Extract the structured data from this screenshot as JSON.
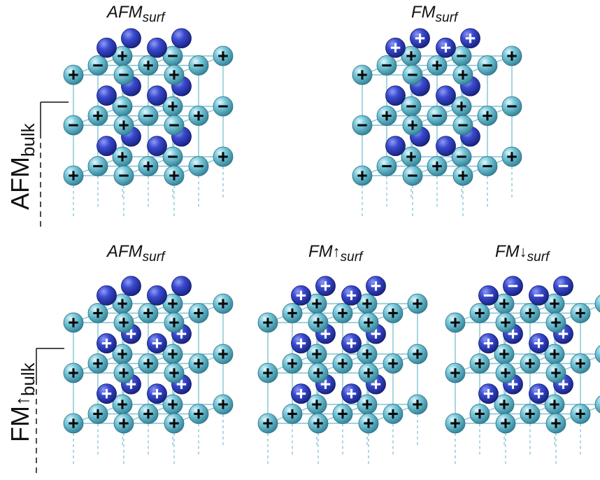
{
  "row_labels": [
    {
      "main": "AFM",
      "sub": "bulk",
      "arrow": ""
    },
    {
      "main": "FM",
      "sub": "bulk",
      "arrow": "↑"
    }
  ],
  "panel_labels": [
    {
      "main": "AFM",
      "sub": "surf",
      "arrow": ""
    },
    {
      "main": "FM",
      "sub": "surf",
      "arrow": ""
    },
    {
      "main": "AFM",
      "sub": "surf",
      "arrow": ""
    },
    {
      "main": "FM",
      "sub": "surf",
      "arrow": "↑"
    },
    {
      "main": "FM",
      "sub": "surf",
      "arrow": "↓"
    }
  ],
  "colors": {
    "cyan_atom": "#5fb8cf",
    "blue_atom": "#2e3fb8",
    "lattice": "#7fc4d4"
  },
  "panels": [
    {
      "surface_sign": "",
      "interior_sign": "",
      "bulk": "AFM"
    },
    {
      "surface_sign": "+",
      "interior_sign": "",
      "bulk": "AFM"
    },
    {
      "surface_sign": "",
      "interior_sign": "+",
      "bulk": "FM"
    },
    {
      "surface_sign": "+",
      "interior_sign": "+",
      "bulk": "FM"
    },
    {
      "surface_sign": "-",
      "interior_sign": "+",
      "bulk": "FM"
    }
  ]
}
